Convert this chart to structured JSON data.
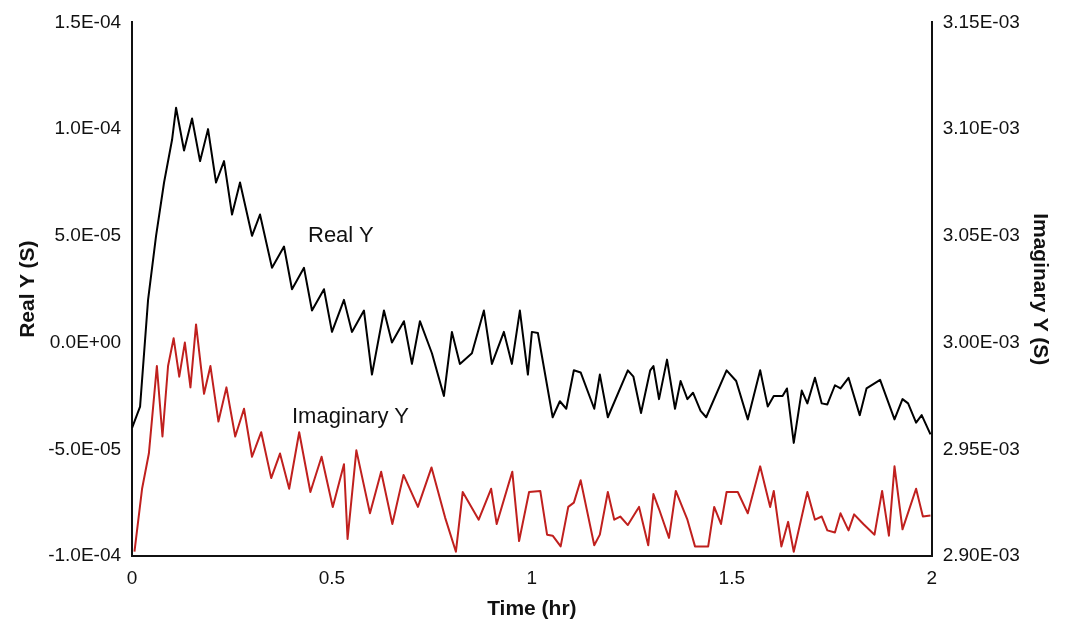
{
  "chart_data": {
    "type": "line",
    "xlabel": "Time (hr)",
    "ylabel": "Real Y (S)",
    "y2label": "Imaginary Y (S)",
    "xlim": [
      0,
      2
    ],
    "xticks": [
      0,
      0.5,
      1,
      1.5,
      2
    ],
    "ylim": [
      -0.0001,
      0.00015
    ],
    "yticks": [
      {
        "value": -0.0001,
        "label": "-1.0E-04"
      },
      {
        "value": -5e-05,
        "label": "-5.0E-05"
      },
      {
        "value": 0,
        "label": "0.0E+00"
      },
      {
        "value": 5e-05,
        "label": "5.0E-05"
      },
      {
        "value": 0.0001,
        "label": "1.0E-04"
      },
      {
        "value": 0.00015,
        "label": "1.5E-04"
      }
    ],
    "y2lim": [
      0.0029,
      0.00315
    ],
    "y2ticks": [
      {
        "value": 0.0029,
        "label": "2.90E-03"
      },
      {
        "value": 0.00295,
        "label": "2.95E-03"
      },
      {
        "value": 0.003,
        "label": "3.00E-03"
      },
      {
        "value": 0.00305,
        "label": "3.05E-03"
      },
      {
        "value": 0.0031,
        "label": "3.10E-03"
      },
      {
        "value": 0.00315,
        "label": "3.15E-03"
      }
    ],
    "grid": false,
    "legend": false,
    "marker": "none",
    "line_style": "solid",
    "series": [
      {
        "name": "Real Y",
        "color": "#000000",
        "x": [
          0,
          0.02,
          0.04,
          0.06,
          0.08,
          0.1,
          0.11,
          0.13,
          0.15,
          0.17,
          0.19,
          0.21,
          0.23,
          0.25,
          0.27,
          0.3,
          0.32,
          0.35,
          0.38,
          0.4,
          0.43,
          0.45,
          0.48,
          0.5,
          0.53,
          0.55,
          0.58,
          0.6,
          0.63,
          0.65,
          0.68,
          0.7,
          0.72,
          0.75,
          0.78,
          0.8,
          0.82,
          0.85,
          0.88,
          0.9,
          0.93,
          0.95,
          0.97,
          0.99,
          1.0,
          1.015,
          1.052,
          1.07,
          1.086,
          1.105,
          1.122,
          1.156,
          1.17,
          1.19,
          1.24,
          1.254,
          1.273,
          1.296,
          1.304,
          1.318,
          1.338,
          1.358,
          1.372,
          1.389,
          1.403,
          1.422,
          1.436,
          1.487,
          1.511,
          1.54,
          1.571,
          1.59,
          1.605,
          1.627,
          1.638,
          1.655,
          1.675,
          1.689,
          1.708,
          1.725,
          1.739,
          1.758,
          1.772,
          1.792,
          1.82,
          1.837,
          1.871,
          1.907,
          1.927,
          1.941,
          1.961,
          1.975,
          1.997
        ],
        "values": [
          -4e-05,
          -3e-05,
          2e-05,
          5e-05,
          7.5e-05,
          9.5e-05,
          0.00011,
          9e-05,
          0.000105,
          8.5e-05,
          0.0001,
          7.5e-05,
          8.5e-05,
          6e-05,
          7.5e-05,
          5e-05,
          6e-05,
          3.5e-05,
          4.5e-05,
          2.5e-05,
          3.5e-05,
          1.5e-05,
          2.5e-05,
          5e-06,
          2e-05,
          5e-06,
          1.5e-05,
          -1.5e-05,
          1.5e-05,
          0,
          1e-05,
          -1e-05,
          1e-05,
          -5e-06,
          -2.5e-05,
          5e-06,
          -1e-05,
          -5e-06,
          1.5e-05,
          -1e-05,
          5e-06,
          -1e-05,
          1.5e-05,
          -1.5e-05,
          5e-06,
          4.5e-06,
          -3.5e-05,
          -2.75e-05,
          -3.1e-05,
          -1.3e-05,
          -1.4e-05,
          -3.1e-05,
          -1.5e-05,
          -3.5e-05,
          -1.3e-05,
          -1.6e-05,
          -3.3e-05,
          -1.3e-05,
          -1.1e-05,
          -2.65e-05,
          -8e-06,
          -3.1e-05,
          -1.8e-05,
          -2.65e-05,
          -2.35e-05,
          -3.2e-05,
          -3.5e-05,
          -1.3e-05,
          -1.8e-05,
          -3.6e-05,
          -1.3e-05,
          -3e-05,
          -2.5e-05,
          -2.5e-05,
          -2.15e-05,
          -4.7e-05,
          -2.25e-05,
          -2.85e-05,
          -1.65e-05,
          -2.85e-05,
          -2.9e-05,
          -2e-05,
          -2.15e-05,
          -1.65e-05,
          -3.4e-05,
          -2.15e-05,
          -1.75e-05,
          -3.6e-05,
          -2.65e-05,
          -2.85e-05,
          -3.75e-05,
          -3.4e-05,
          -4.3e-05
        ]
      },
      {
        "name": "Imaginary Y",
        "color": "#c0201e",
        "axis": "y2",
        "x": [
          0.006,
          0.025,
          0.042,
          0.062,
          0.076,
          0.09,
          0.104,
          0.118,
          0.132,
          0.146,
          0.16,
          0.18,
          0.196,
          0.216,
          0.236,
          0.258,
          0.28,
          0.3,
          0.323,
          0.348,
          0.37,
          0.393,
          0.418,
          0.446,
          0.474,
          0.502,
          0.53,
          0.539,
          0.561,
          0.595,
          0.623,
          0.651,
          0.679,
          0.715,
          0.749,
          0.783,
          0.81,
          0.827,
          0.867,
          0.898,
          0.912,
          0.951,
          0.968,
          0.993,
          1.021,
          1.038,
          1.052,
          1.072,
          1.091,
          1.105,
          1.122,
          1.156,
          1.17,
          1.19,
          1.206,
          1.221,
          1.24,
          1.268,
          1.291,
          1.304,
          1.318,
          1.343,
          1.36,
          1.389,
          1.408,
          1.441,
          1.456,
          1.473,
          1.487,
          1.515,
          1.54,
          1.571,
          1.596,
          1.605,
          1.624,
          1.641,
          1.655,
          1.689,
          1.708,
          1.725,
          1.739,
          1.758,
          1.772,
          1.792,
          1.806,
          1.829,
          1.857,
          1.876,
          1.893,
          1.907,
          1.927,
          1.961,
          1.978,
          1.997
        ],
        "values": [
          0.002902,
          0.0029315,
          0.002948,
          0.002989,
          0.002956,
          0.002989,
          0.003002,
          0.002984,
          0.003,
          0.002979,
          0.0030085,
          0.002976,
          0.002989,
          0.002963,
          0.002979,
          0.002956,
          0.002969,
          0.0029465,
          0.002958,
          0.0029365,
          0.002948,
          0.0029315,
          0.002958,
          0.00293,
          0.0029465,
          0.002923,
          0.002943,
          0.002908,
          0.0029495,
          0.00292,
          0.0029395,
          0.002915,
          0.002938,
          0.002923,
          0.0029415,
          0.002918,
          0.002902,
          0.00293,
          0.002917,
          0.0029315,
          0.002915,
          0.0029395,
          0.002907,
          0.00293,
          0.0029305,
          0.00291,
          0.0029095,
          0.0029045,
          0.002923,
          0.002925,
          0.0029355,
          0.002905,
          0.00291,
          0.00293,
          0.002917,
          0.0029185,
          0.0029145,
          0.002923,
          0.002905,
          0.002929,
          0.002922,
          0.0029085,
          0.0029305,
          0.002917,
          0.0029045,
          0.0029045,
          0.002923,
          0.002915,
          0.00293,
          0.00293,
          0.00292,
          0.002942,
          0.002923,
          0.0029305,
          0.0029045,
          0.002916,
          0.002902,
          0.00293,
          0.002917,
          0.0029185,
          0.002912,
          0.002911,
          0.00292,
          0.002912,
          0.0029195,
          0.002915,
          0.00291,
          0.0029305,
          0.0029095,
          0.002942,
          0.0029125,
          0.0029315,
          0.0029185,
          0.002919
        ]
      }
    ]
  }
}
